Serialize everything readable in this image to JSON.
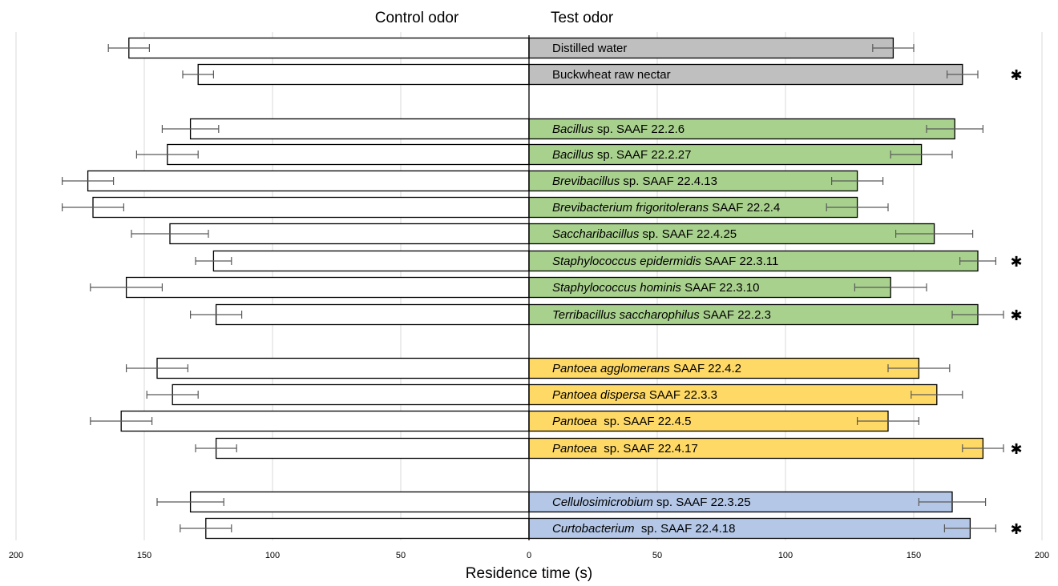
{
  "chart_data": {
    "type": "bar",
    "orientation": "horizontal-butterfly",
    "header_left": "Control odor",
    "header_right": "Test odor",
    "xlabel": "Residence time (s)",
    "xlim": [
      0,
      200
    ],
    "tick_labels_left": [
      "200",
      "150",
      "100",
      "50"
    ],
    "tick_labels_right": [
      "0",
      "50",
      "100",
      "150",
      "200"
    ],
    "significance_symbol": "✱",
    "grid": true,
    "colors": {
      "control": "#ffffff",
      "neutral": "#bfbfbf",
      "firmicutes": "#a9d18e",
      "pantoea": "#ffd966",
      "actinobacteria": "#b4c7e7"
    },
    "categories": [
      {
        "label": [
          {
            "t": "Distilled water",
            "i": false
          }
        ],
        "control": 156,
        "control_err": 8,
        "test": 142,
        "test_err": 8,
        "group": "neutral",
        "significant": false
      },
      {
        "label": [
          {
            "t": "Buckwheat raw nectar",
            "i": false
          }
        ],
        "control": 129,
        "control_err": 6,
        "test": 169,
        "test_err": 6,
        "group": "neutral",
        "significant": true
      },
      {
        "label": [
          {
            "t": "Bacillus",
            "i": true
          },
          {
            "t": " sp. SAAF 22.2.6",
            "i": false
          }
        ],
        "control": 132,
        "control_err": 11,
        "test": 166,
        "test_err": 11,
        "group": "firmicutes",
        "significant": false
      },
      {
        "label": [
          {
            "t": "Bacillus",
            "i": true
          },
          {
            "t": " sp. SAAF 22.2.27",
            "i": false
          }
        ],
        "control": 141,
        "control_err": 12,
        "test": 153,
        "test_err": 12,
        "group": "firmicutes",
        "significant": false
      },
      {
        "label": [
          {
            "t": "Brevibacillus",
            "i": true
          },
          {
            "t": " sp. SAAF 22.4.13",
            "i": false
          }
        ],
        "control": 172,
        "control_err": 10,
        "test": 128,
        "test_err": 10,
        "group": "firmicutes",
        "significant": false
      },
      {
        "label": [
          {
            "t": "Brevibacterium frigoritolerans",
            "i": true
          },
          {
            "t": " SAAF 22.2.4",
            "i": false
          }
        ],
        "control": 170,
        "control_err": 12,
        "test": 128,
        "test_err": 12,
        "group": "firmicutes",
        "significant": false
      },
      {
        "label": [
          {
            "t": "Saccharibacillus",
            "i": true
          },
          {
            "t": " sp. SAAF 22.4.25",
            "i": false
          }
        ],
        "control": 140,
        "control_err": 15,
        "test": 158,
        "test_err": 15,
        "group": "firmicutes",
        "significant": false
      },
      {
        "label": [
          {
            "t": "Staphylococcus epidermidis",
            "i": true
          },
          {
            "t": " SAAF 22.3.11",
            "i": false
          }
        ],
        "control": 123,
        "control_err": 7,
        "test": 175,
        "test_err": 7,
        "group": "firmicutes",
        "significant": true
      },
      {
        "label": [
          {
            "t": "Staphylococcus hominis",
            "i": true
          },
          {
            "t": " SAAF 22.3.10",
            "i": false
          }
        ],
        "control": 157,
        "control_err": 14,
        "test": 141,
        "test_err": 14,
        "group": "firmicutes",
        "significant": false
      },
      {
        "label": [
          {
            "t": "Terribacillus saccharophilus",
            "i": true
          },
          {
            "t": " SAAF 22.2.3",
            "i": false
          }
        ],
        "control": 122,
        "control_err": 10,
        "test": 175,
        "test_err": 10,
        "group": "firmicutes",
        "significant": true
      },
      {
        "label": [
          {
            "t": "Pantoea agglomerans",
            "i": true
          },
          {
            "t": " SAAF 22.4.2",
            "i": false
          }
        ],
        "control": 145,
        "control_err": 12,
        "test": 152,
        "test_err": 12,
        "group": "pantoea",
        "significant": false
      },
      {
        "label": [
          {
            "t": "Pantoea dispersa",
            "i": true
          },
          {
            "t": " SAAF 22.3.3",
            "i": false
          }
        ],
        "control": 139,
        "control_err": 10,
        "test": 159,
        "test_err": 10,
        "group": "pantoea",
        "significant": false
      },
      {
        "label": [
          {
            "t": "Pantoea ",
            "i": true
          },
          {
            "t": " sp. SAAF 22.4.5",
            "i": false
          }
        ],
        "control": 159,
        "control_err": 12,
        "test": 140,
        "test_err": 12,
        "group": "pantoea",
        "significant": false
      },
      {
        "label": [
          {
            "t": "Pantoea ",
            "i": true
          },
          {
            "t": " sp. SAAF 22.4.17",
            "i": false
          }
        ],
        "control": 122,
        "control_err": 8,
        "test": 177,
        "test_err": 8,
        "group": "pantoea",
        "significant": true
      },
      {
        "label": [
          {
            "t": "Cellulosimicrobium",
            "i": true
          },
          {
            "t": " sp. SAAF 22.3.25",
            "i": false
          }
        ],
        "control": 132,
        "control_err": 13,
        "test": 165,
        "test_err": 13,
        "group": "actinobacteria",
        "significant": false
      },
      {
        "label": [
          {
            "t": "Curtobacterium ",
            "i": true
          },
          {
            "t": " sp. SAAF 22.4.18",
            "i": false
          }
        ],
        "control": 126,
        "control_err": 10,
        "test": 172,
        "test_err": 10,
        "group": "actinobacteria",
        "significant": true
      }
    ]
  }
}
